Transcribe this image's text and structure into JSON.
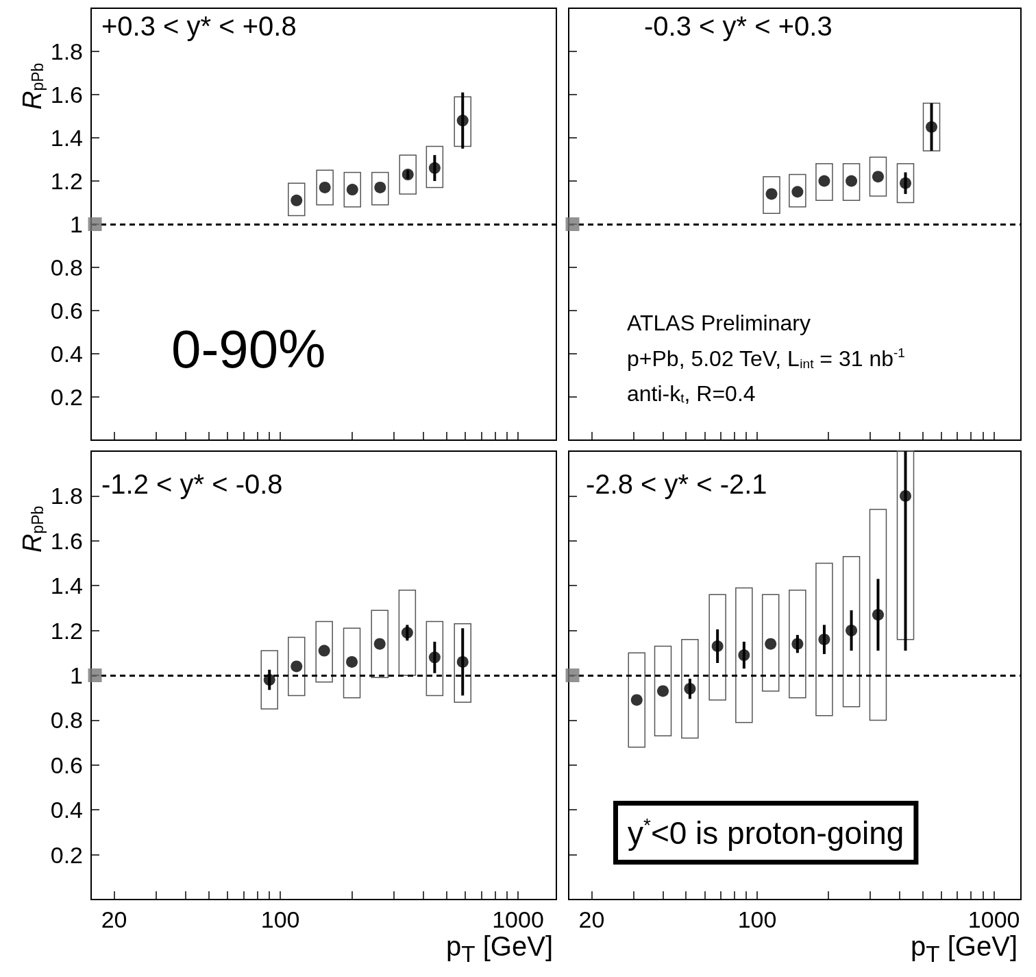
{
  "chart_data": [
    {
      "type": "scatter",
      "log": "x",
      "ylabel": "R$_{pPb}$",
      "tick_labels": "y",
      "xlim": [
        16,
        1450
      ],
      "ylim": [
        0,
        2
      ],
      "xticks": [
        20,
        {
          "value": 30,
          "label": null
        },
        {
          "value": 40,
          "label": null
        },
        {
          "value": 50,
          "label": null
        },
        {
          "value": 60,
          "label": null
        },
        {
          "value": 70,
          "label": null
        },
        {
          "value": 80,
          "label": null
        },
        {
          "value": 90,
          "label": null
        },
        100,
        {
          "value": 200,
          "label": null
        },
        {
          "value": 300,
          "label": null
        },
        {
          "value": 400,
          "label": null
        },
        {
          "value": 500,
          "label": null
        },
        {
          "value": 600,
          "label": null
        },
        {
          "value": 700,
          "label": null
        },
        {
          "value": 800,
          "label": null
        },
        {
          "value": 900,
          "label": null
        },
        1000
      ],
      "yticks": [
        0.2,
        0.4,
        0.6,
        0.8,
        1,
        1.2,
        1.4,
        1.6,
        1.8
      ],
      "ref_lines": [
        {
          "axis": "y",
          "value": 1,
          "label": null,
          "color": "#000000",
          "line_style": "dashed"
        }
      ],
      "annotations": [
        "+0.3 < y* < +0.8",
        "0-90%"
      ],
      "series": [
        {
          "type": "bar",
          "color": "#555555",
          "x": [
            117,
            154,
            201,
            263,
            344,
            446,
            585
          ],
          "base": [
            1.04,
            1.09,
            1.08,
            1.09,
            1.14,
            1.17,
            1.36
          ],
          "values": [
            0.15,
            0.16,
            0.16,
            0.15,
            0.18,
            0.19,
            0.23
          ]
        },
        {
          "color": "#000000",
          "marker": "circle",
          "x": [
            117,
            154,
            201,
            263,
            344,
            446,
            585
          ],
          "values": [
            1.11,
            1.17,
            1.16,
            1.17,
            1.23,
            1.26,
            1.48
          ],
          "errors": [
            null,
            null,
            null,
            null,
            0.02,
            0.06,
            0.13
          ]
        },
        {
          "type": "scatter",
          "color": "#777777",
          "marker": "square",
          "x": [
            16.6
          ],
          "values": [
            1
          ]
        }
      ]
    },
    {
      "type": "scatter",
      "log": "x",
      "tick_labels": false,
      "xlim": [
        16,
        1300
      ],
      "ylim": [
        0,
        2
      ],
      "xticks": [
        20,
        {
          "value": 30,
          "label": null
        },
        {
          "value": 40,
          "label": null
        },
        {
          "value": 50,
          "label": null
        },
        {
          "value": 60,
          "label": null
        },
        {
          "value": 70,
          "label": null
        },
        {
          "value": 80,
          "label": null
        },
        {
          "value": 90,
          "label": null
        },
        100,
        {
          "value": 200,
          "label": null
        },
        {
          "value": 300,
          "label": null
        },
        {
          "value": 400,
          "label": null
        },
        {
          "value": 500,
          "label": null
        },
        {
          "value": 600,
          "label": null
        },
        {
          "value": 700,
          "label": null
        },
        {
          "value": 800,
          "label": null
        },
        {
          "value": 900,
          "label": null
        },
        1000
      ],
      "yticks": [
        0.2,
        0.4,
        0.6,
        0.8,
        1,
        1.2,
        1.4,
        1.6,
        1.8
      ],
      "ref_lines": [
        {
          "axis": "y",
          "value": 1,
          "label": null,
          "color": "#000000",
          "line_style": "dashed"
        }
      ],
      "annotations": [
        "-0.3 < y* < +0.3",
        "ATLAS Preliminary",
        "p+Pb, 5.02 TeV, L$_{int}$ = 31 nb$^{-1}$",
        "anti-k$_{t}$, R=0.4"
      ],
      "series": [
        {
          "type": "bar",
          "color": "#555555",
          "x": [
            115,
            148,
            192,
            250,
            324,
            423,
            545
          ],
          "base": [
            1.05,
            1.08,
            1.11,
            1.11,
            1.13,
            1.1,
            1.34
          ],
          "values": [
            0.17,
            0.15,
            0.17,
            0.17,
            0.18,
            0.18,
            0.22
          ]
        },
        {
          "color": "#000000",
          "marker": "circle",
          "x": [
            115,
            148,
            192,
            250,
            324,
            423,
            545
          ],
          "values": [
            1.14,
            1.15,
            1.2,
            1.2,
            1.22,
            1.19,
            1.45
          ],
          "errors": [
            null,
            null,
            null,
            null,
            null,
            0.05,
            0.11
          ]
        },
        {
          "type": "scatter",
          "color": "#777777",
          "marker": "square",
          "x": [
            16.6
          ],
          "values": [
            1
          ]
        }
      ]
    },
    {
      "type": "scatter",
      "log": "x",
      "xlabel": "p$_{T}$ [GeV]",
      "ylabel": "R$_{pPb}$",
      "xlim": [
        16,
        1450
      ],
      "ylim": [
        0,
        2
      ],
      "xticks": [
        20,
        {
          "value": 30,
          "label": null
        },
        {
          "value": 40,
          "label": null
        },
        {
          "value": 50,
          "label": null
        },
        {
          "value": 60,
          "label": null
        },
        {
          "value": 70,
          "label": null
        },
        {
          "value": 80,
          "label": null
        },
        {
          "value": 90,
          "label": null
        },
        100,
        {
          "value": 200,
          "label": null
        },
        {
          "value": 300,
          "label": null
        },
        {
          "value": 400,
          "label": null
        },
        {
          "value": 500,
          "label": null
        },
        {
          "value": 600,
          "label": null
        },
        {
          "value": 700,
          "label": null
        },
        {
          "value": 800,
          "label": null
        },
        {
          "value": 900,
          "label": null
        },
        1000
      ],
      "yticks": [
        0.2,
        0.4,
        0.6,
        0.8,
        1,
        1.2,
        1.4,
        1.6,
        1.8
      ],
      "ref_lines": [
        {
          "axis": "y",
          "value": 1,
          "label": null,
          "color": "#000000",
          "line_style": "dashed"
        }
      ],
      "annotations": [
        "-1.2 < y* < -0.8"
      ],
      "series": [
        {
          "type": "bar",
          "color": "#555555",
          "x": [
            90,
            117,
            153,
            200,
            262,
            342,
            446,
            585
          ],
          "base": [
            0.85,
            0.91,
            0.97,
            0.9,
            0.99,
            1.0,
            0.91,
            0.88
          ],
          "values": [
            0.26,
            0.26,
            0.27,
            0.31,
            0.3,
            0.38,
            0.33,
            0.35
          ]
        },
        {
          "color": "#000000",
          "marker": "circle",
          "x": [
            90,
            117,
            153,
            200,
            262,
            342,
            446,
            585
          ],
          "values": [
            0.98,
            1.04,
            1.11,
            1.06,
            1.14,
            1.19,
            1.08,
            1.06
          ],
          "errors": [
            0.045,
            null,
            null,
            null,
            null,
            0.035,
            0.07,
            0.15
          ]
        },
        {
          "type": "scatter",
          "color": "#777777",
          "marker": "square",
          "x": [
            16.6
          ],
          "values": [
            1
          ]
        }
      ]
    },
    {
      "type": "scatter",
      "log": "x",
      "xlabel": "p$_{T}$ [GeV]",
      "tick_labels": "x",
      "xlim": [
        16,
        1300
      ],
      "ylim": [
        0,
        2
      ],
      "xticks": [
        20,
        {
          "value": 30,
          "label": null
        },
        {
          "value": 40,
          "label": null
        },
        {
          "value": 50,
          "label": null
        },
        {
          "value": 60,
          "label": null
        },
        {
          "value": 70,
          "label": null
        },
        {
          "value": 80,
          "label": null
        },
        {
          "value": 90,
          "label": null
        },
        100,
        {
          "value": 200,
          "label": null
        },
        {
          "value": 300,
          "label": null
        },
        {
          "value": 400,
          "label": null
        },
        {
          "value": 500,
          "label": null
        },
        {
          "value": 600,
          "label": null
        },
        {
          "value": 700,
          "label": null
        },
        {
          "value": 800,
          "label": null
        },
        {
          "value": 900,
          "label": null
        },
        1000
      ],
      "yticks": [
        0.2,
        0.4,
        0.6,
        0.8,
        1,
        1.2,
        1.4,
        1.6,
        1.8
      ],
      "ref_lines": [
        {
          "axis": "y",
          "value": 1,
          "label": null,
          "color": "#000000",
          "line_style": "dashed"
        }
      ],
      "annotations": [
        "-2.8 < y* < -2.1",
        "y$^{*}$<0 is proton-going"
      ],
      "series": [
        {
          "type": "bar",
          "color": "#555555",
          "x": [
            31,
            40,
            52,
            68,
            88,
            114,
            148,
            192,
            250,
            324,
            423
          ],
          "base": [
            0.68,
            0.73,
            0.72,
            0.89,
            0.79,
            0.93,
            0.9,
            0.82,
            0.86,
            0.8,
            1.16
          ],
          "values": [
            0.42,
            0.4,
            0.44,
            0.47,
            0.6,
            0.43,
            0.48,
            0.68,
            0.67,
            0.94,
            0.84
          ]
        },
        {
          "color": "#000000",
          "marker": "circle",
          "x": [
            31,
            40,
            52,
            68,
            88,
            114,
            148,
            192,
            250,
            324,
            423
          ],
          "values": [
            0.89,
            0.93,
            0.94,
            1.13,
            1.09,
            1.14,
            1.14,
            1.16,
            1.2,
            1.27,
            1.8
          ],
          "errors": [
            null,
            null,
            0.045,
            0.075,
            0.06,
            null,
            0.04,
            0.065,
            0.09,
            0.16,
            [
              1.11,
              2
            ]
          ]
        },
        {
          "type": "scatter",
          "color": "#777777",
          "marker": "square",
          "x": [
            16.6
          ],
          "values": [
            1
          ]
        }
      ]
    }
  ]
}
